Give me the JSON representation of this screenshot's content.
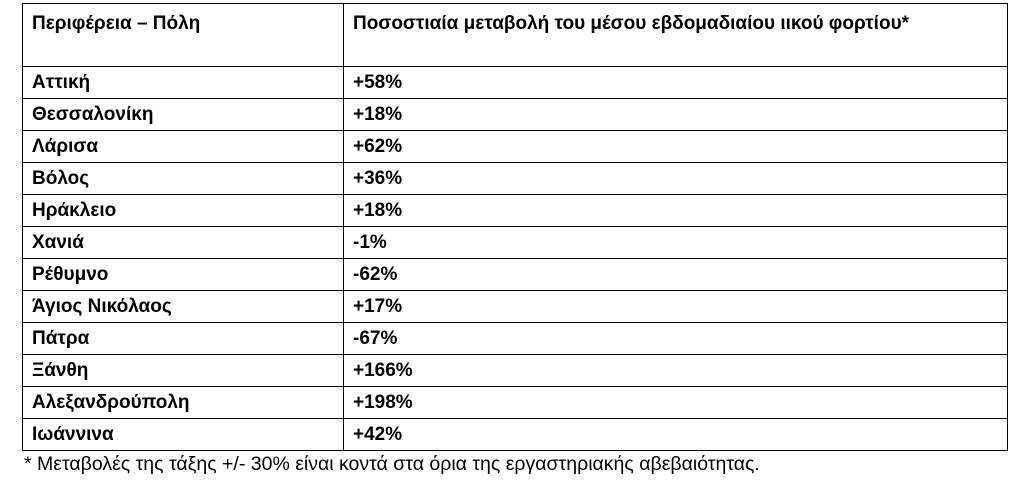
{
  "table": {
    "header": [
      "Περιφέρεια – Πόλη",
      "Ποσοστιαία μεταβολή του μέσου εβδομαδιαίου ιικού φορτίου*"
    ],
    "rows": [
      [
        "Αττική",
        "+58%"
      ],
      [
        "Θεσσαλονίκη",
        "+18%"
      ],
      [
        "Λάρισα",
        "+62%"
      ],
      [
        "Βόλος",
        "+36%"
      ],
      [
        "Ηράκλειο",
        "+18%"
      ],
      [
        "Χανιά",
        "-1%"
      ],
      [
        "Ρέθυμνο",
        "-62%"
      ],
      [
        "Άγιος Νικόλαος",
        "+17%"
      ],
      [
        "Πάτρα",
        "-67%"
      ],
      [
        "Ξάνθη",
        "+166%"
      ],
      [
        "Αλεξανδρούπολη",
        "+198%"
      ],
      [
        "Ιωάννινα",
        "+42%"
      ]
    ]
  },
  "footnote": "* Μεταβολές της τάξης +/- 30% είναι κοντά στα όρια της εργαστηριακής αβεβαιότητας."
}
